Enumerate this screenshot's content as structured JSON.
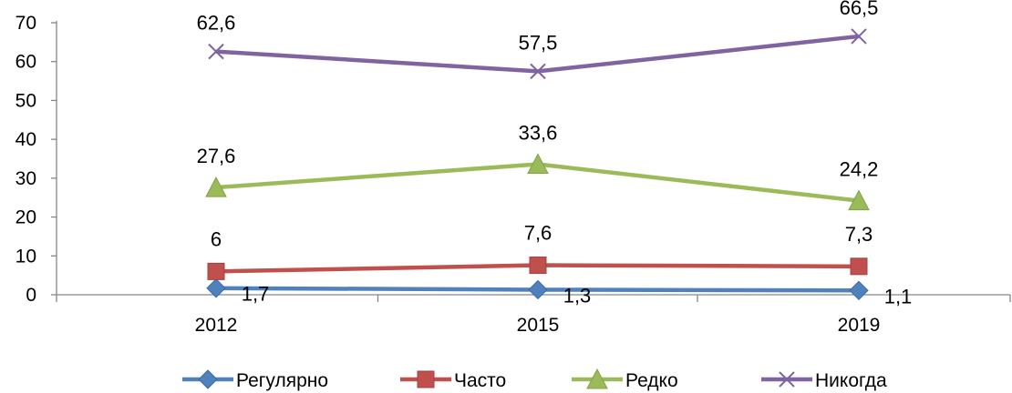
{
  "chart_data": {
    "type": "line",
    "categories": [
      "2012",
      "2015",
      "2019"
    ],
    "ylim": [
      0,
      70
    ],
    "yticks": [
      "0",
      "10",
      "20",
      "30",
      "40",
      "50",
      "60",
      "70"
    ],
    "grid": false,
    "legend_position": "bottom",
    "series": [
      {
        "name": "Регулярно",
        "values": [
          1.7,
          1.3,
          1.1
        ],
        "labels": [
          "1,7",
          "1,3",
          "1,1"
        ],
        "color": "#4f81bd",
        "marker": "diamond"
      },
      {
        "name": "Часто",
        "values": [
          6,
          7.6,
          7.3
        ],
        "labels": [
          "6",
          "7,6",
          "7,3"
        ],
        "color": "#c0504d",
        "marker": "square"
      },
      {
        "name": "Редко",
        "values": [
          27.6,
          33.6,
          24.2
        ],
        "labels": [
          "27,6",
          "33,6",
          "24,2"
        ],
        "color": "#9bbb59",
        "marker": "triangle"
      },
      {
        "name": "Никогда",
        "values": [
          62.6,
          57.5,
          66.5
        ],
        "labels": [
          "62,6",
          "57,5",
          "66,5"
        ],
        "color": "#8064a2",
        "marker": "x"
      }
    ]
  }
}
